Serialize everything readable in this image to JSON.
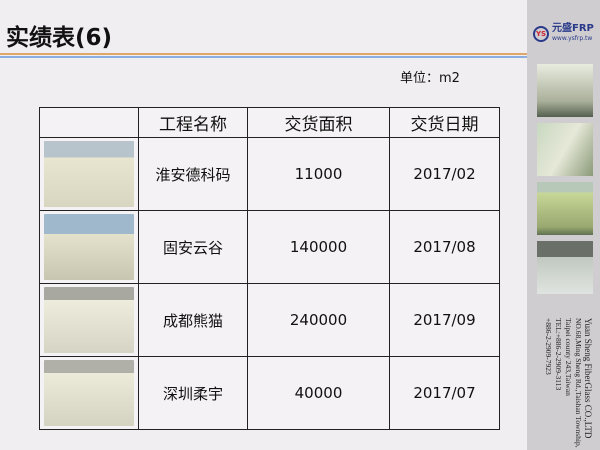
{
  "title": "实绩表(6)",
  "unit": "单位：m2",
  "table": {
    "headers": [
      "",
      "工程名称",
      "交货面积",
      "交货日期"
    ],
    "rows": [
      {
        "name": "淮安德科码",
        "area": "11000",
        "date": "2017/02"
      },
      {
        "name": "固安云谷",
        "area": "140000",
        "date": "2017/08"
      },
      {
        "name": "成都熊猫",
        "area": "240000",
        "date": "2017/09"
      },
      {
        "name": "深圳柔宇",
        "area": "40000",
        "date": "2017/07"
      }
    ]
  },
  "sidebar": {
    "logo_mark": "YS",
    "logo_text": "元盛FRP",
    "logo_url": "www.ysfrp.tw",
    "address": [
      "Yuan Sheng FiberGlass CO.,LTD",
      "NO.68,Ming Sheng Rd.,Taishan Township,",
      "Taipei county 243,Taiwan",
      "TEL:+886-2-2909-3113",
      "+886-2-2909-7923"
    ]
  },
  "colors": {
    "accent_orange": "#e0a868",
    "accent_blue": "#8aaee0"
  }
}
